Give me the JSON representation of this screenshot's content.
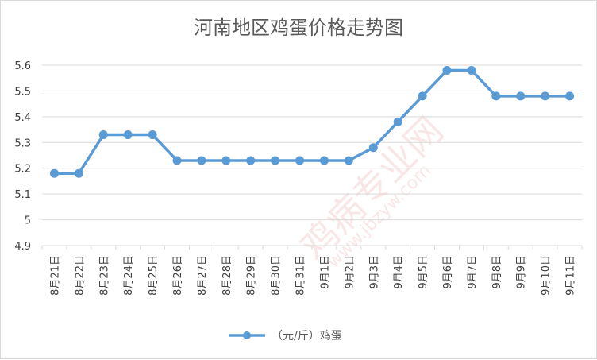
{
  "chart_data": {
    "type": "line",
    "title": "河南地区鸡蛋价格走势图",
    "categories": [
      "8月21日",
      "8月22日",
      "8月23日",
      "8月24日",
      "8月25日",
      "8月26日",
      "8月27日",
      "8月28日",
      "8月29日",
      "8月30日",
      "8月31日",
      "9月1日",
      "9月2日",
      "9月3日",
      "9月4日",
      "9月5日",
      "9月6日",
      "9月7日",
      "9月8日",
      "9月9日",
      "9月10日",
      "9月11日"
    ],
    "series": [
      {
        "name": "（元/斤）鸡蛋",
        "values": [
          5.18,
          5.18,
          5.33,
          5.33,
          5.33,
          5.23,
          5.23,
          5.23,
          5.23,
          5.23,
          5.23,
          5.23,
          5.23,
          5.28,
          5.38,
          5.48,
          5.58,
          5.58,
          5.48,
          5.48,
          5.48,
          5.48
        ]
      }
    ],
    "ylim": [
      4.9,
      5.6
    ],
    "yticks": [
      "4.9",
      "5",
      "5.1",
      "5.2",
      "5.3",
      "5.4",
      "5.5",
      "5.6"
    ],
    "grid": "horizontal",
    "legend_position": "bottom",
    "colors": {
      "series": "#5b9bd5",
      "grid": "#d9d9d9",
      "axis_text": "#404040",
      "title": "#595959"
    }
  },
  "watermark": {
    "text": "鸡病专业网",
    "subtext": "www.jbzyw.com",
    "color": "#e88a8a"
  }
}
